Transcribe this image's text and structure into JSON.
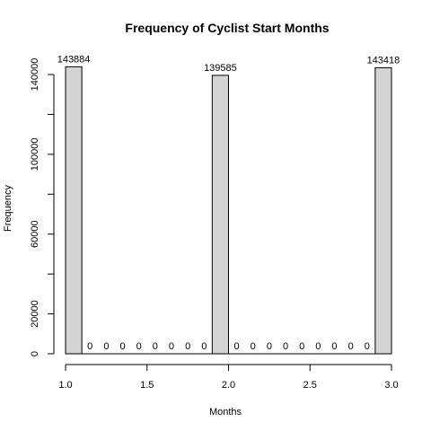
{
  "chart_data": {
    "type": "bar",
    "title": "Frequency of Cyclist Start Months",
    "xlabel": "Months",
    "ylabel": "Frequency",
    "xlim": [
      1.0,
      3.0
    ],
    "ylim": [
      0,
      150000
    ],
    "bin_width": 0.1,
    "bins": [
      {
        "start": 1.0,
        "end": 1.1,
        "value": 143884
      },
      {
        "start": 1.1,
        "end": 1.2,
        "value": 0
      },
      {
        "start": 1.2,
        "end": 1.3,
        "value": 0
      },
      {
        "start": 1.3,
        "end": 1.4,
        "value": 0
      },
      {
        "start": 1.4,
        "end": 1.5,
        "value": 0
      },
      {
        "start": 1.5,
        "end": 1.6,
        "value": 0
      },
      {
        "start": 1.6,
        "end": 1.7,
        "value": 0
      },
      {
        "start": 1.7,
        "end": 1.8,
        "value": 0
      },
      {
        "start": 1.8,
        "end": 1.9,
        "value": 0
      },
      {
        "start": 1.9,
        "end": 2.0,
        "value": 139585
      },
      {
        "start": 2.0,
        "end": 2.1,
        "value": 0
      },
      {
        "start": 2.1,
        "end": 2.2,
        "value": 0
      },
      {
        "start": 2.2,
        "end": 2.3,
        "value": 0
      },
      {
        "start": 2.3,
        "end": 2.4,
        "value": 0
      },
      {
        "start": 2.4,
        "end": 2.5,
        "value": 0
      },
      {
        "start": 2.5,
        "end": 2.6,
        "value": 0
      },
      {
        "start": 2.6,
        "end": 2.7,
        "value": 0
      },
      {
        "start": 2.7,
        "end": 2.8,
        "value": 0
      },
      {
        "start": 2.8,
        "end": 2.9,
        "value": 0
      },
      {
        "start": 2.9,
        "end": 3.0,
        "value": 143418
      }
    ],
    "x_ticks": [
      "1.0",
      "1.5",
      "2.0",
      "2.5",
      "3.0"
    ],
    "y_ticks": [
      "0",
      "20000",
      "60000",
      "100000",
      "140000"
    ],
    "x_tick_values": [
      1.0,
      1.5,
      2.0,
      2.5,
      3.0
    ],
    "y_tick_values": [
      0,
      20000,
      40000,
      60000,
      80000,
      100000,
      120000,
      140000
    ],
    "y_tick_labels": {
      "0": "0",
      "20000": "20000",
      "60000": "60000",
      "100000": "100000",
      "140000": "140000"
    },
    "bar_fill": "#d3d3d3",
    "bar_stroke": "#000000",
    "grid": false
  }
}
